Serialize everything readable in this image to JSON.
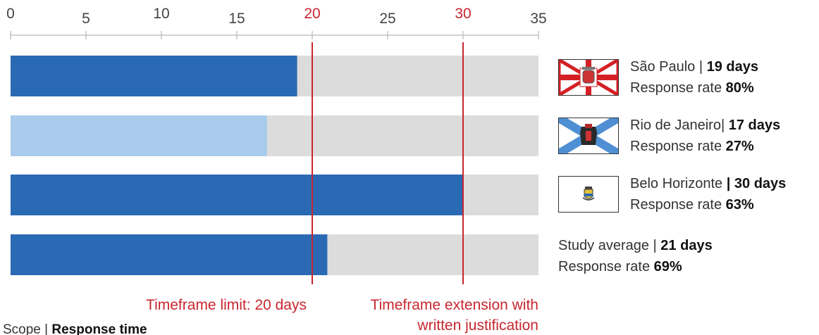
{
  "chart_data": {
    "type": "bar",
    "orientation": "horizontal",
    "xlim": [
      0,
      35
    ],
    "x_ticks": [
      0,
      5,
      10,
      15,
      20,
      25,
      30,
      35
    ],
    "highlight_ticks": [
      20,
      30
    ],
    "bars": [
      {
        "value": 19,
        "color": "#2a6ab5"
      },
      {
        "value": 17,
        "color": "#a9cbec"
      },
      {
        "value": 30,
        "color": "#2a6ab5"
      },
      {
        "value": 21,
        "color": "#2a6ab5"
      }
    ],
    "background_color": "#dcdcdd",
    "reference_lines": [
      {
        "value": 20,
        "label": "Timeframe limit: 20 days",
        "color": "#c8262f"
      },
      {
        "value": 30,
        "label_lines": [
          "Timeframe extension with",
          "written justification"
        ],
        "color": "#c8262f"
      }
    ],
    "footer": {
      "prefix": "Scope | ",
      "emphasis": "Response time"
    }
  },
  "legend": {
    "items": [
      {
        "flag": "sao-paulo-flag-icon",
        "name": "São Paulo | ",
        "days": "19 days",
        "rate_label": "Response rate ",
        "rate": "80%"
      },
      {
        "flag": "rio-de-janeiro-flag-icon",
        "name": "Rio de Janeiro| ",
        "days": "17 days",
        "rate_label": "Response rate ",
        "rate": "27%"
      },
      {
        "flag": "belo-horizonte-flag-icon",
        "name": "Belo Horizonte ",
        "days": "| 30 days",
        "rate_label": "Response rate ",
        "rate": "63%"
      }
    ],
    "average": {
      "name": "Study average | ",
      "days": "21 days",
      "rate_label": "Response rate ",
      "rate": "69%"
    }
  }
}
